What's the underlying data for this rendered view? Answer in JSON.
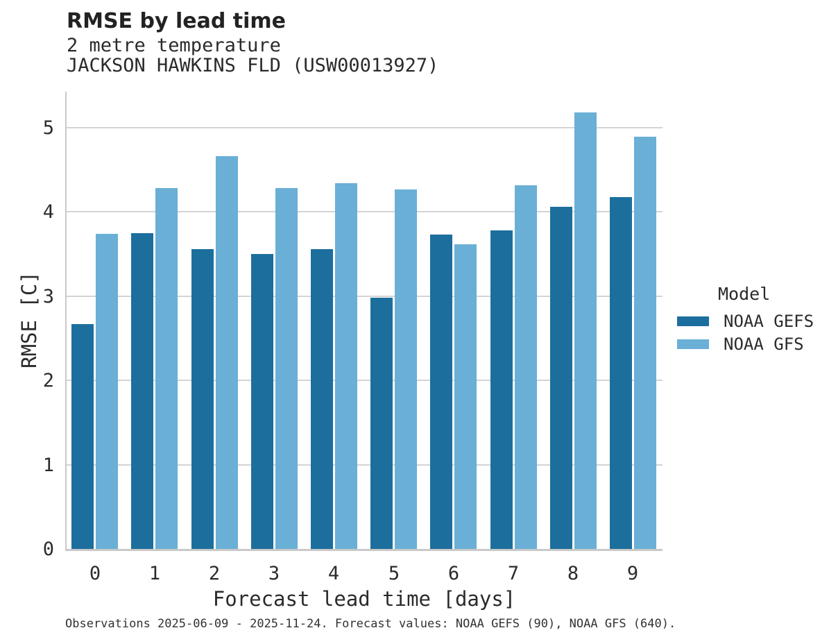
{
  "header": {
    "title": "RMSE by lead time",
    "subtitle_line1": "2 metre temperature",
    "subtitle_line2": "JACKSON HAWKINS FLD (USW00013927)"
  },
  "chart_data": {
    "type": "bar",
    "title": "RMSE by lead time",
    "subtitle": [
      "2 metre temperature",
      "JACKSON HAWKINS FLD (USW00013927)"
    ],
    "categories": [
      "0",
      "1",
      "2",
      "3",
      "4",
      "5",
      "6",
      "7",
      "8",
      "9"
    ],
    "series": [
      {
        "name": "NOAA GEFS",
        "color": "#1C6E9D",
        "values": [
          2.67,
          3.75,
          3.56,
          3.5,
          3.56,
          2.98,
          3.73,
          3.78,
          4.06,
          4.18
        ]
      },
      {
        "name": "NOAA GFS",
        "color": "#6AAFD6",
        "values": [
          3.74,
          4.28,
          4.66,
          4.28,
          4.34,
          4.27,
          3.62,
          4.32,
          5.18,
          4.89
        ]
      }
    ],
    "xlabel": "Forecast lead time [days]",
    "ylabel": "RMSE [C]",
    "yticks": [
      0,
      1,
      2,
      3,
      4,
      5
    ],
    "ylim": [
      0,
      5.45
    ],
    "grid": true,
    "grid_color": "#d4d4d4",
    "legend": {
      "title": "Model",
      "position": "right"
    }
  },
  "caption": "Observations 2025-06-09 - 2025-11-24. Forecast values: NOAA GEFS (90), NOAA GFS (640)."
}
